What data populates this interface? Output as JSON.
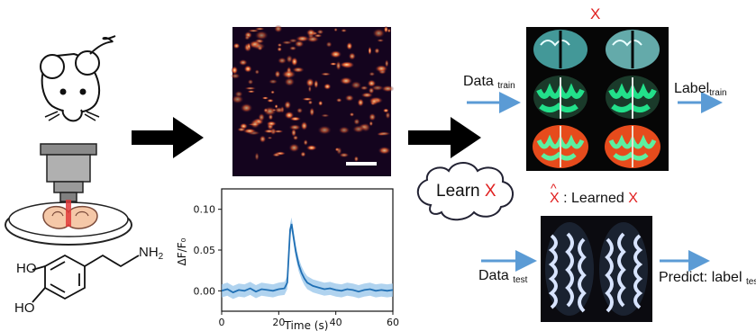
{
  "labels": {
    "x_top": "X",
    "data_train_main": "Data",
    "data_train_sub": "train",
    "label_train_main": "Label",
    "label_train_sub": "train",
    "learn_prefix": "Learn ",
    "learn_x": "X",
    "xhat_x": "X",
    "xhat_hat": "^",
    "learned_prefix": ": Learned ",
    "learned_x": "X",
    "data_test_main": "Data",
    "data_test_sub": "test",
    "predict_main": "Predict: label",
    "predict_sub": "test",
    "molecule_ho_top": "HO",
    "molecule_ho_bottom": "HO",
    "molecule_nh2": "NH",
    "molecule_nh2_sub": "2"
  },
  "colors": {
    "accent_red": "#e02020",
    "arrow_blue": "#5b9bd5",
    "trace_blue": "#1f6fb4",
    "background": "#ffffff"
  },
  "chart_data": {
    "type": "line",
    "xlabel": "Time (s)",
    "ylabel": "ΔF/F₀",
    "xlim": [
      0,
      60
    ],
    "ylim": [
      -0.025,
      0.125
    ],
    "xticks": [
      0,
      20,
      40,
      60
    ],
    "yticks": [
      0.0,
      0.05,
      0.1
    ],
    "ytick_labels": [
      "0.00",
      "0.05",
      "0.10"
    ],
    "series": [
      {
        "x": [
          0,
          2,
          4,
          6,
          8,
          10,
          12,
          14,
          16,
          18,
          20,
          22,
          23,
          24,
          24.5,
          25,
          26,
          27,
          28,
          29,
          30,
          32,
          34,
          36,
          38,
          40,
          42,
          44,
          46,
          48,
          50,
          52,
          54,
          56,
          58,
          60
        ],
        "y": [
          0.0,
          0.002,
          -0.002,
          0.001,
          0.0,
          0.003,
          -0.001,
          0.002,
          0.001,
          0.0,
          0.002,
          0.003,
          0.01,
          0.075,
          0.082,
          0.07,
          0.048,
          0.032,
          0.022,
          0.015,
          0.01,
          0.006,
          0.004,
          0.002,
          0.003,
          0.001,
          0.0,
          0.002,
          0.001,
          -0.001,
          0.001,
          0.002,
          0.0,
          0.001,
          0.0,
          0.001
        ]
      }
    ]
  }
}
